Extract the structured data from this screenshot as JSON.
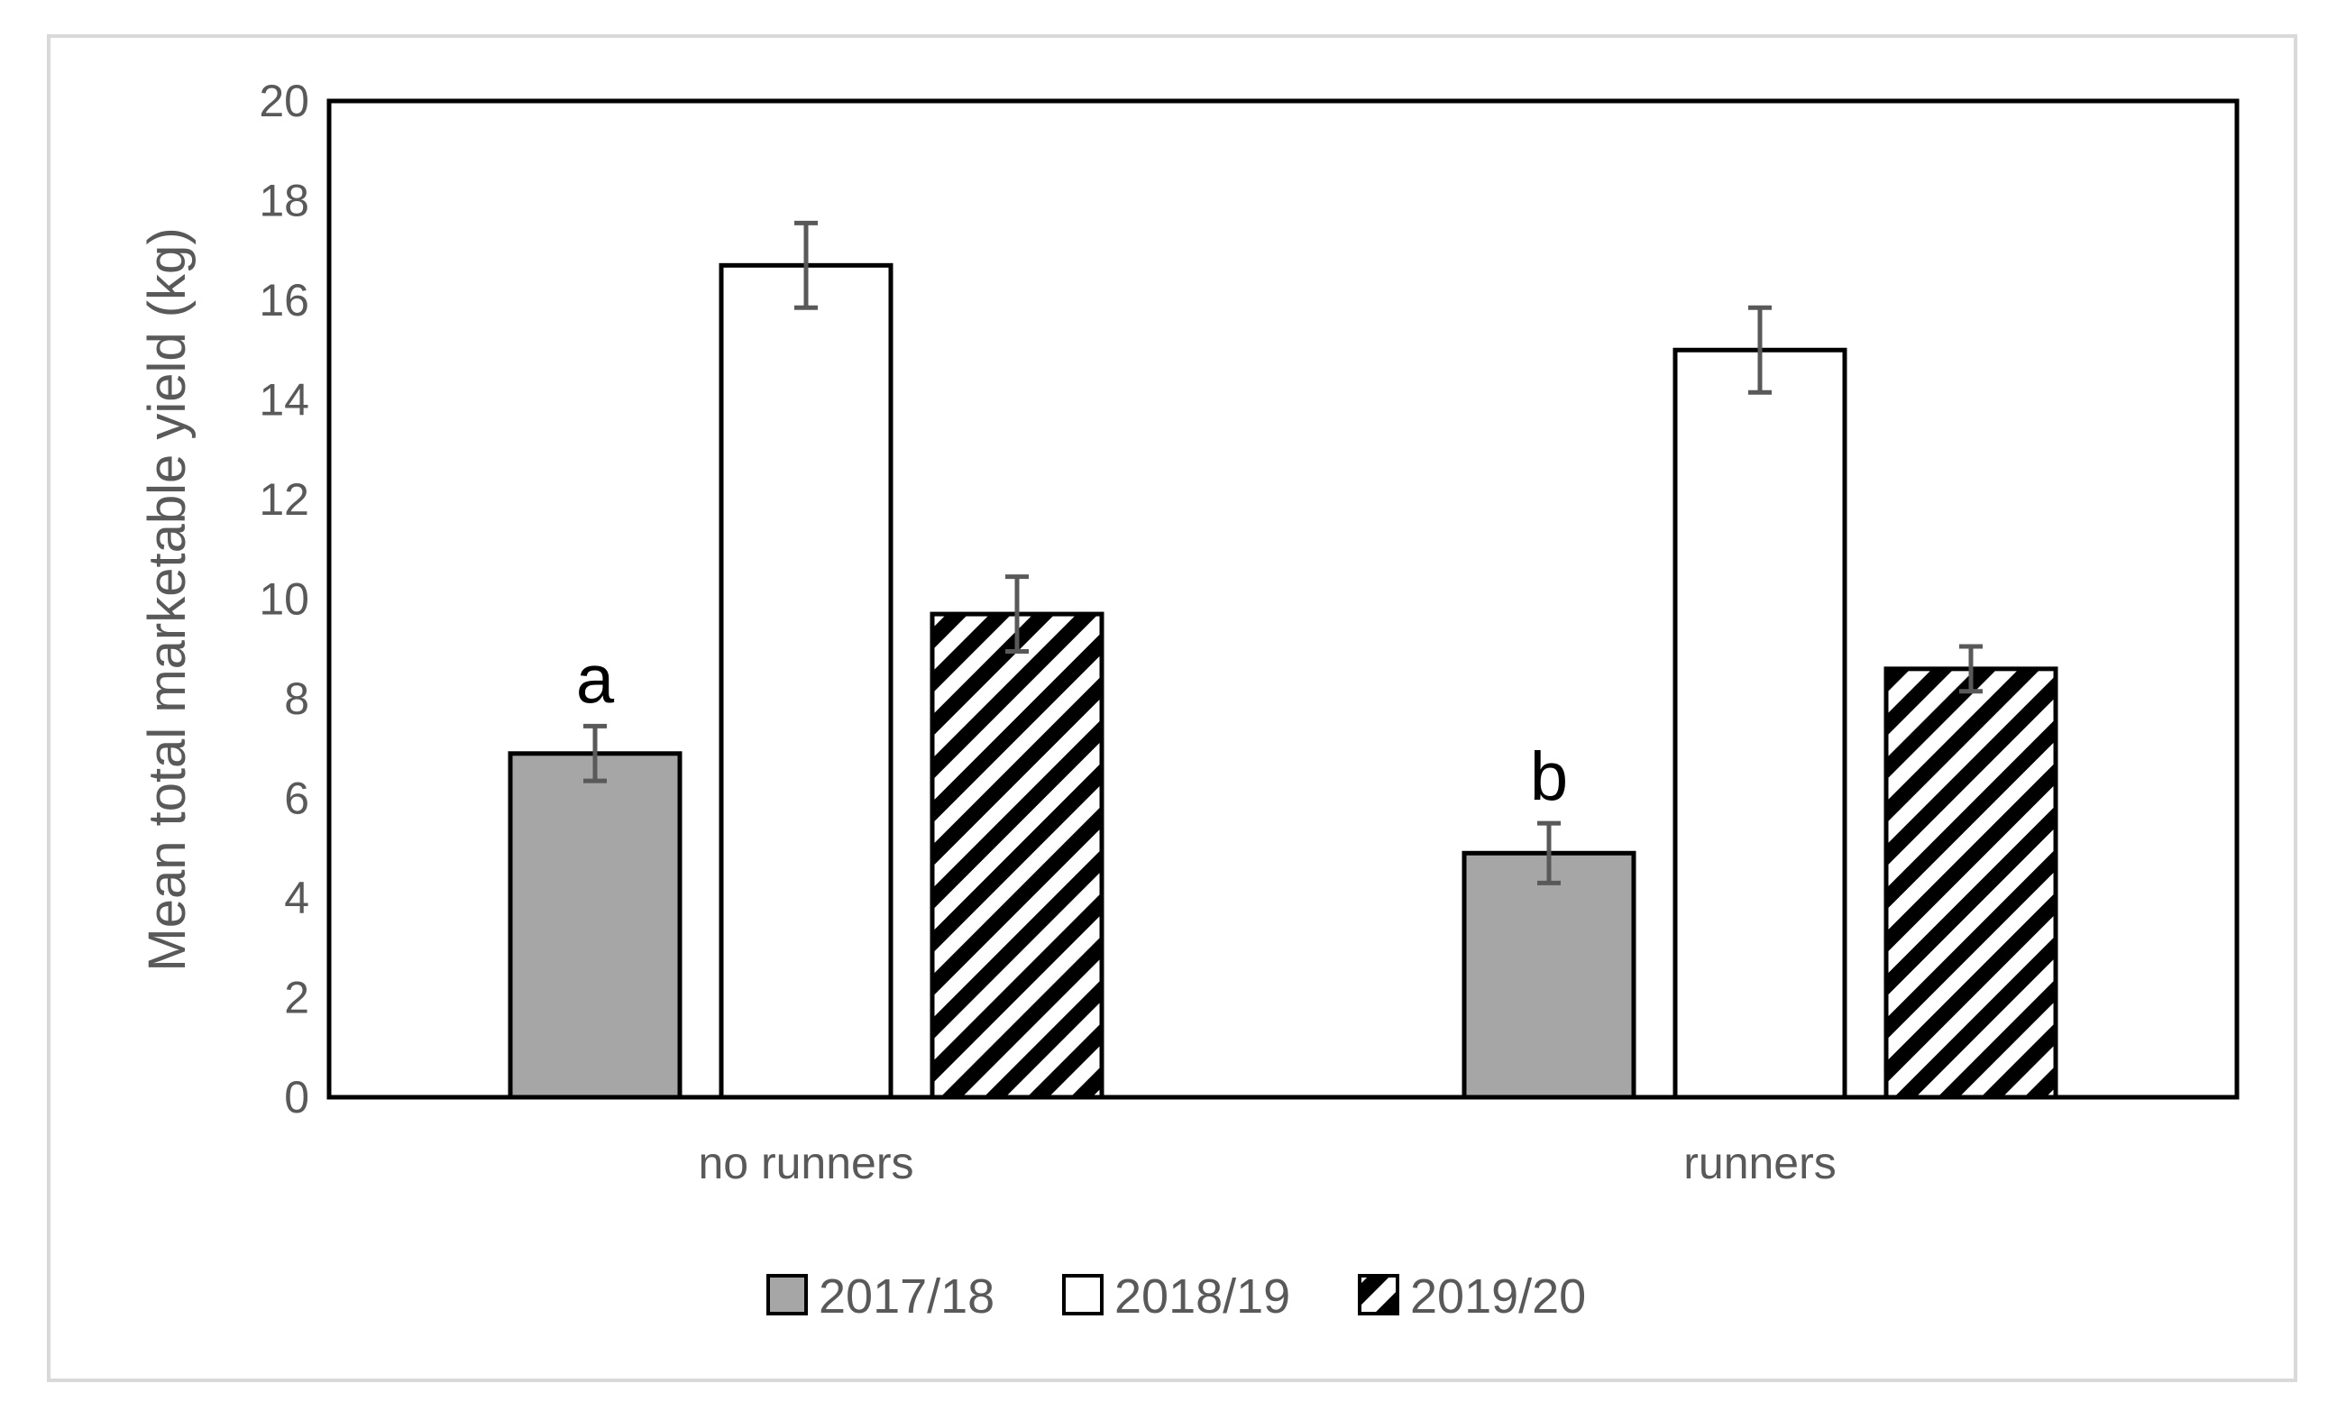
{
  "chart_data": {
    "type": "bar",
    "title": "",
    "xlabel": "",
    "ylabel": "Mean total marketable yield (kg)",
    "ylim": [
      0,
      20
    ],
    "yticks": [
      0,
      2,
      4,
      6,
      8,
      10,
      12,
      14,
      16,
      18,
      20
    ],
    "categories": [
      "no runners",
      "runners"
    ],
    "series": [
      {
        "name": "2017/18",
        "values": [
          6.9,
          4.9
        ],
        "errors": [
          0.55,
          0.6
        ],
        "fill": "#a6a6a6",
        "pattern": "solid"
      },
      {
        "name": "2018/19",
        "values": [
          16.7,
          15.0
        ],
        "errors": [
          0.85,
          0.85
        ],
        "fill": "#ffffff",
        "pattern": "solid"
      },
      {
        "name": "2019/20",
        "values": [
          9.7,
          8.6
        ],
        "errors": [
          0.75,
          0.45
        ],
        "fill": "#000000",
        "pattern": "diagonal-stripes"
      }
    ],
    "annotations": [
      {
        "text": "a",
        "series": 0,
        "category": 0
      },
      {
        "text": "b",
        "series": 0,
        "category": 1
      }
    ],
    "grid": false,
    "legend": "bottom-center",
    "colors": {
      "axis_text": "#595959",
      "error_bar": "#595959",
      "bar_outline": "#000000",
      "frame": "#d9d9d9"
    }
  }
}
